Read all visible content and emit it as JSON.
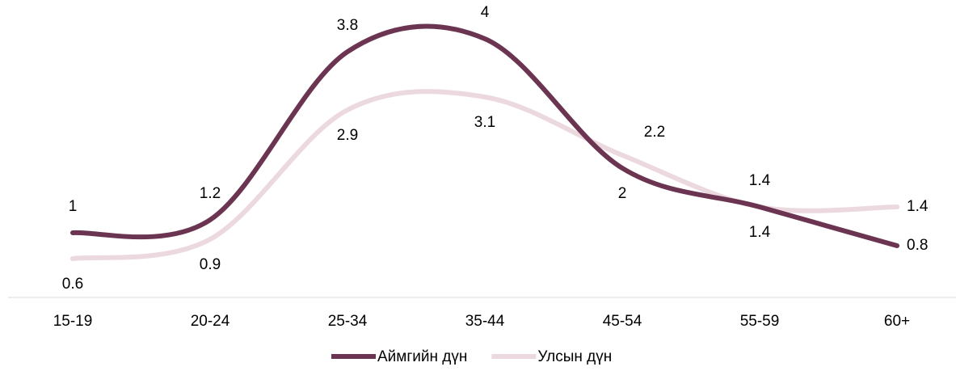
{
  "chart_data": {
    "type": "line",
    "categories": [
      "15-19",
      "20-24",
      "25-34",
      "35-44",
      "45-54",
      "55-59",
      "60+"
    ],
    "series": [
      {
        "name": "Аймгийн дүн",
        "color": "#6b3551",
        "values": [
          1.0,
          1.2,
          3.8,
          4.0,
          2.0,
          1.4,
          0.8
        ]
      },
      {
        "name": "Улсын дүн",
        "color": "#ecd9df",
        "values": [
          0.6,
          0.9,
          2.9,
          3.1,
          2.2,
          1.4,
          1.4
        ]
      }
    ],
    "legend": "bottom",
    "data_labels": true
  }
}
